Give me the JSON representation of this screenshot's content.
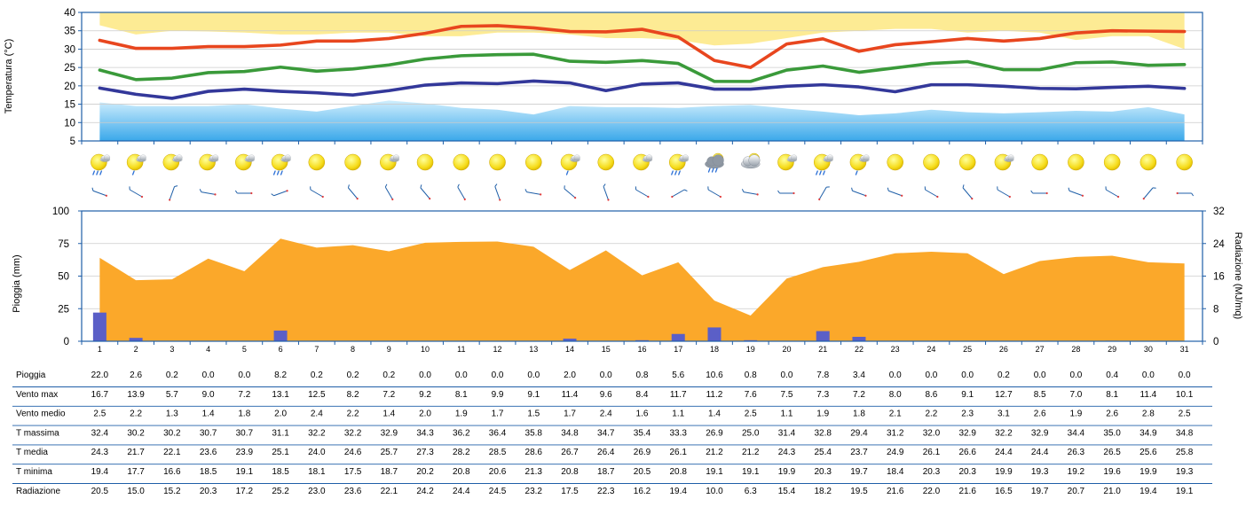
{
  "chart_data": [
    {
      "type": "line",
      "x": [
        1,
        2,
        3,
        4,
        5,
        6,
        7,
        8,
        9,
        10,
        11,
        12,
        13,
        14,
        15,
        16,
        17,
        18,
        19,
        20,
        21,
        22,
        23,
        24,
        25,
        26,
        27,
        28,
        29,
        30,
        31
      ],
      "ylabel": "Temperatura (°C)",
      "ylim": [
        5,
        40
      ],
      "yticks": [
        5,
        10,
        15,
        20,
        25,
        30,
        35,
        40
      ],
      "grid": true,
      "series": [
        {
          "key": "tmax",
          "color": "#e8461e",
          "values": [
            32.4,
            30.2,
            30.2,
            30.7,
            30.7,
            31.1,
            32.2,
            32.2,
            32.9,
            34.3,
            36.2,
            36.4,
            35.8,
            34.8,
            34.7,
            35.4,
            33.3,
            26.9,
            25.0,
            31.4,
            32.8,
            29.4,
            31.2,
            32.0,
            32.9,
            32.2,
            32.9,
            34.4,
            35.0,
            34.9,
            34.8
          ]
        },
        {
          "key": "tmed",
          "color": "#3a9a3a",
          "values": [
            24.3,
            21.7,
            22.1,
            23.6,
            23.9,
            25.1,
            24.0,
            24.6,
            25.7,
            27.3,
            28.2,
            28.5,
            28.6,
            26.7,
            26.4,
            26.9,
            26.1,
            21.2,
            21.2,
            24.3,
            25.4,
            23.7,
            24.9,
            26.1,
            26.6,
            24.4,
            24.4,
            26.3,
            26.5,
            25.6,
            25.8
          ]
        },
        {
          "key": "tmin",
          "color": "#33389a",
          "values": [
            19.4,
            17.7,
            16.6,
            18.5,
            19.1,
            18.5,
            18.1,
            17.5,
            18.7,
            20.2,
            20.8,
            20.6,
            21.3,
            20.8,
            18.7,
            20.5,
            20.8,
            19.1,
            19.1,
            19.9,
            20.3,
            19.7,
            18.4,
            20.3,
            20.3,
            19.9,
            19.3,
            19.2,
            19.6,
            19.9,
            19.3
          ]
        }
      ],
      "bands": [
        {
          "key": "upper",
          "color": "#fdeb94",
          "top": 40,
          "values": [
            36.5,
            34.0,
            35.0,
            34.8,
            34.5,
            34.0,
            34.0,
            34.5,
            34.5,
            33.5,
            33.5,
            34.5,
            34.5,
            34.0,
            33.0,
            33.0,
            32.5,
            31.0,
            31.5,
            33.0,
            34.5,
            35.0,
            35.5,
            35.5,
            34.5,
            35.0,
            34.5,
            32.5,
            33.5,
            33.5,
            30.0
          ]
        },
        {
          "key": "lower",
          "color": "#5ab8ec",
          "bottom": 5,
          "values": [
            15.5,
            14.5,
            14.5,
            14.5,
            15.0,
            13.8,
            13.0,
            14.5,
            16.0,
            15.2,
            14.0,
            13.5,
            12.2,
            14.5,
            14.2,
            14.2,
            14.0,
            14.5,
            14.8,
            13.8,
            13.0,
            12.0,
            12.5,
            13.5,
            12.8,
            12.5,
            12.8,
            13.2,
            13.0,
            14.2,
            12.2
          ]
        }
      ]
    },
    {
      "type": "bar",
      "x": [
        1,
        2,
        3,
        4,
        5,
        6,
        7,
        8,
        9,
        10,
        11,
        12,
        13,
        14,
        15,
        16,
        17,
        18,
        19,
        20,
        21,
        22,
        23,
        24,
        25,
        26,
        27,
        28,
        29,
        30,
        31
      ],
      "ylabel": "Pioggia (mm)",
      "y2label": "Radiazione (MJ/mq)",
      "ylim": [
        0,
        100
      ],
      "y2lim": [
        0,
        32
      ],
      "yticks": [
        0,
        25,
        50,
        75,
        100
      ],
      "y2ticks": [
        0,
        8,
        16,
        24,
        32
      ],
      "grid": true,
      "bar_color": "#5b5fc7",
      "area_color": "#fba82a",
      "pioggia": [
        22.0,
        2.6,
        0.2,
        0.0,
        0.0,
        8.2,
        0.2,
        0.2,
        0.2,
        0.0,
        0.0,
        0.0,
        0.0,
        2.0,
        0.0,
        0.8,
        5.6,
        10.6,
        0.8,
        0.0,
        7.8,
        3.4,
        0.0,
        0.0,
        0.0,
        0.2,
        0.0,
        0.0,
        0.4,
        0.0,
        0.0
      ],
      "radiazione": [
        20.5,
        15.0,
        15.2,
        20.3,
        17.2,
        25.2,
        23.0,
        23.6,
        22.1,
        24.2,
        24.4,
        24.5,
        23.2,
        17.5,
        22.3,
        16.2,
        19.4,
        10.0,
        6.3,
        15.4,
        18.2,
        19.5,
        21.6,
        22.0,
        21.6,
        16.5,
        19.7,
        20.7,
        21.0,
        19.4,
        19.1
      ]
    },
    {
      "type": "table",
      "columns": [
        "1",
        "2",
        "3",
        "4",
        "5",
        "6",
        "7",
        "8",
        "9",
        "10",
        "11",
        "12",
        "13",
        "14",
        "15",
        "16",
        "17",
        "18",
        "19",
        "20",
        "21",
        "22",
        "23",
        "24",
        "25",
        "26",
        "27",
        "28",
        "29",
        "30",
        "31"
      ],
      "rows": [
        {
          "label": "Pioggia",
          "values": [
            "22.0",
            "2.6",
            "0.2",
            "0.0",
            "0.0",
            "8.2",
            "0.2",
            "0.2",
            "0.2",
            "0.0",
            "0.0",
            "0.0",
            "0.0",
            "2.0",
            "0.0",
            "0.8",
            "5.6",
            "10.6",
            "0.8",
            "0.0",
            "7.8",
            "3.4",
            "0.0",
            "0.0",
            "0.0",
            "0.2",
            "0.0",
            "0.0",
            "0.4",
            "0.0",
            "0.0"
          ]
        },
        {
          "label": "Vento max",
          "values": [
            "16.7",
            "13.9",
            "5.7",
            "9.0",
            "7.2",
            "13.1",
            "12.5",
            "8.2",
            "7.2",
            "9.2",
            "8.1",
            "9.9",
            "9.1",
            "11.4",
            "9.6",
            "8.4",
            "11.7",
            "11.2",
            "7.6",
            "7.5",
            "7.3",
            "7.2",
            "8.0",
            "8.6",
            "9.1",
            "12.7",
            "8.5",
            "7.0",
            "8.1",
            "11.4",
            "10.1"
          ]
        },
        {
          "label": "Vento medio",
          "values": [
            "2.5",
            "2.2",
            "1.3",
            "1.4",
            "1.8",
            "2.0",
            "2.4",
            "2.2",
            "1.4",
            "2.0",
            "1.9",
            "1.7",
            "1.5",
            "1.7",
            "2.4",
            "1.6",
            "1.1",
            "1.4",
            "2.5",
            "1.1",
            "1.9",
            "1.8",
            "2.1",
            "2.2",
            "2.3",
            "3.1",
            "2.6",
            "1.9",
            "2.6",
            "2.8",
            "2.5"
          ]
        },
        {
          "label": "T massima",
          "values": [
            "32.4",
            "30.2",
            "30.2",
            "30.7",
            "30.7",
            "31.1",
            "32.2",
            "32.2",
            "32.9",
            "34.3",
            "36.2",
            "36.4",
            "35.8",
            "34.8",
            "34.7",
            "35.4",
            "33.3",
            "26.9",
            "25.0",
            "31.4",
            "32.8",
            "29.4",
            "31.2",
            "32.0",
            "32.9",
            "32.2",
            "32.9",
            "34.4",
            "35.0",
            "34.9",
            "34.8"
          ]
        },
        {
          "label": "T media",
          "values": [
            "24.3",
            "21.7",
            "22.1",
            "23.6",
            "23.9",
            "25.1",
            "24.0",
            "24.6",
            "25.7",
            "27.3",
            "28.2",
            "28.5",
            "28.6",
            "26.7",
            "26.4",
            "26.9",
            "26.1",
            "21.2",
            "21.2",
            "24.3",
            "25.4",
            "23.7",
            "24.9",
            "26.1",
            "26.6",
            "24.4",
            "24.4",
            "26.3",
            "26.5",
            "25.6",
            "25.8"
          ]
        },
        {
          "label": "T minima",
          "values": [
            "19.4",
            "17.7",
            "16.6",
            "18.5",
            "19.1",
            "18.5",
            "18.1",
            "17.5",
            "18.7",
            "20.2",
            "20.8",
            "20.6",
            "21.3",
            "20.8",
            "18.7",
            "20.5",
            "20.8",
            "19.1",
            "19.1",
            "19.9",
            "20.3",
            "19.7",
            "18.4",
            "20.3",
            "20.3",
            "19.9",
            "19.3",
            "19.2",
            "19.6",
            "19.9",
            "19.3"
          ]
        },
        {
          "label": "Radiazione",
          "values": [
            "20.5",
            "15.0",
            "15.2",
            "20.3",
            "17.2",
            "25.2",
            "23.0",
            "23.6",
            "22.1",
            "24.2",
            "24.4",
            "24.5",
            "23.2",
            "17.5",
            "22.3",
            "16.2",
            "19.4",
            "10.0",
            "6.3",
            "15.4",
            "18.2",
            "19.5",
            "21.6",
            "22.0",
            "21.6",
            "16.5",
            "19.7",
            "20.7",
            "21.0",
            "19.4",
            "19.1"
          ]
        }
      ]
    }
  ],
  "weather_icons": [
    "sun-cloud-rain",
    "sun-cloud-drizzle",
    "sun-cloud",
    "sun-cloud",
    "sun-cloud",
    "sun-rain",
    "sun",
    "sun",
    "sun-cloud",
    "sun",
    "sun",
    "sun",
    "sun",
    "sun-cloud-drizzle",
    "sun",
    "sun-cloud",
    "sun-cloud-rain",
    "cloud-heavy-rain",
    "cloud-sun",
    "sun-cloud",
    "sun-cloud-rain",
    "sun-cloud-drizzle",
    "sun",
    "sun",
    "sun",
    "sun-cloud",
    "sun",
    "sun",
    "sun",
    "sun",
    "sun"
  ],
  "wind_directions_deg": [
    290,
    300,
    20,
    280,
    270,
    250,
    300,
    320,
    330,
    320,
    330,
    340,
    280,
    310,
    340,
    300,
    60,
    300,
    280,
    270,
    30,
    290,
    290,
    300,
    320,
    300,
    270,
    290,
    300,
    40,
    90
  ],
  "colors": {
    "grid": "#cccccc",
    "axis": "#1f5fa8",
    "table_rule": "#1f5fa8"
  }
}
